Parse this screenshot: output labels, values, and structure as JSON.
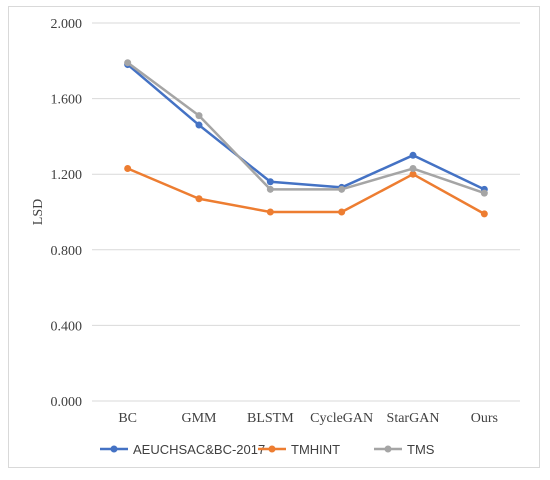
{
  "chart_data": {
    "type": "line",
    "title": "",
    "xlabel": "",
    "ylabel": "LSD",
    "ylim": [
      0,
      2
    ],
    "yticks": [
      "0.000",
      "0.400",
      "0.800",
      "1.200",
      "1.600",
      "2.000"
    ],
    "categories": [
      "BC",
      "GMM",
      "BLSTM",
      "CycleGAN",
      "StarGAN",
      "Ours"
    ],
    "grid": "horizontal",
    "legend_position": "bottom",
    "series": [
      {
        "name": "AEUCHSAC&BC-2017",
        "color": "#4472c4",
        "values": [
          1.78,
          1.46,
          1.16,
          1.13,
          1.3,
          1.12
        ]
      },
      {
        "name": "TMHINT",
        "color": "#ed7d31",
        "values": [
          1.23,
          1.07,
          1.0,
          1.0,
          1.2,
          0.99
        ]
      },
      {
        "name": "TMS",
        "color": "#a5a5a5",
        "values": [
          1.79,
          1.51,
          1.12,
          1.12,
          1.23,
          1.1
        ]
      }
    ]
  }
}
